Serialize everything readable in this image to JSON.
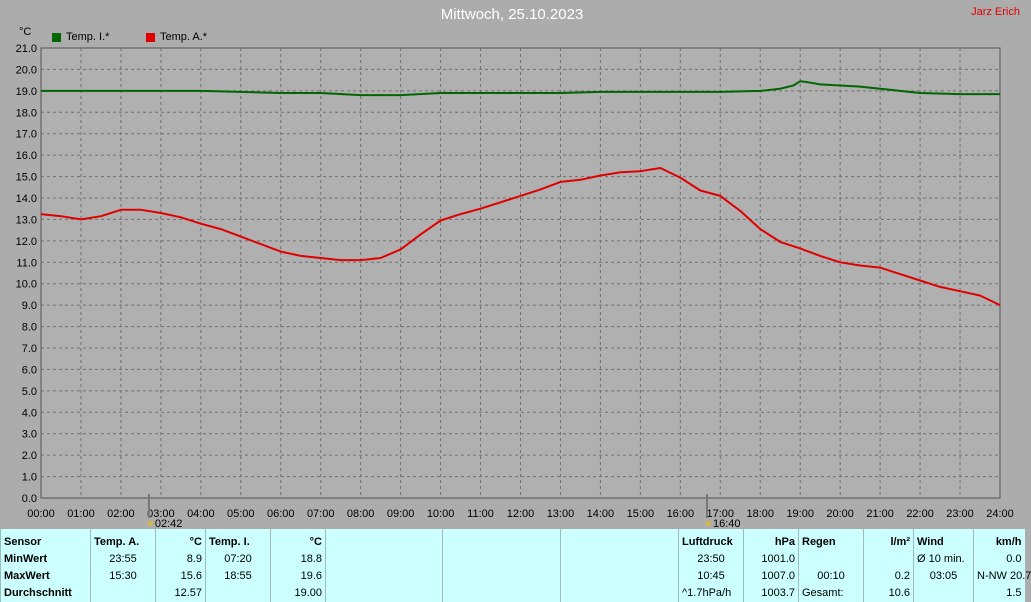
{
  "header": {
    "title": "Mittwoch, 25.10.2023",
    "author": "Jarz Erich",
    "unit": "°C"
  },
  "legend": [
    {
      "label": "Temp. I.*",
      "color": "#006600"
    },
    {
      "label": "Temp. A.*",
      "color": "#e00000"
    }
  ],
  "sun_markers": [
    {
      "time": "02:42",
      "hour": 2.7
    },
    {
      "time": "16:40",
      "hour": 16.667
    }
  ],
  "chart_data": {
    "type": "line",
    "title": "Mittwoch, 25.10.2023",
    "ylabel": "°C",
    "xlabel": "",
    "xlim": [
      "00:00",
      "24:00"
    ],
    "ylim": [
      0,
      21
    ],
    "grid": true,
    "legend_position": "top-left",
    "x_ticks": [
      "00:00",
      "01:00",
      "02:00",
      "03:00",
      "04:00",
      "05:00",
      "06:00",
      "07:00",
      "08:00",
      "09:00",
      "10:00",
      "11:00",
      "12:00",
      "13:00",
      "14:00",
      "15:00",
      "16:00",
      "17:00",
      "18:00",
      "19:00",
      "20:00",
      "21:00",
      "22:00",
      "23:00",
      "24:00"
    ],
    "y_ticks": [
      "0.0",
      "1.0",
      "2.0",
      "3.0",
      "4.0",
      "5.0",
      "6.0",
      "7.0",
      "8.0",
      "9.0",
      "10.0",
      "11.0",
      "12.0",
      "13.0",
      "14.0",
      "15.0",
      "16.0",
      "17.0",
      "18.0",
      "19.0",
      "20.0",
      "21.0"
    ],
    "series": [
      {
        "name": "Temp. I.*",
        "color": "#006600",
        "x": [
          0,
          1,
          2,
          3,
          4,
          5,
          6,
          7,
          8,
          9,
          10,
          11,
          12,
          13,
          14,
          15,
          16,
          17,
          18,
          18.5,
          18.83,
          19,
          19.2,
          19.5,
          20,
          20.5,
          21,
          21.5,
          22,
          23,
          24
        ],
        "y": [
          19.0,
          19.0,
          19.0,
          19.0,
          19.0,
          18.95,
          18.9,
          18.9,
          18.8,
          18.8,
          18.9,
          18.9,
          18.9,
          18.9,
          18.95,
          18.95,
          18.95,
          18.95,
          19.0,
          19.1,
          19.25,
          19.45,
          19.4,
          19.3,
          19.25,
          19.2,
          19.1,
          19.0,
          18.9,
          18.85,
          18.85
        ]
      },
      {
        "name": "Temp. A.*",
        "color": "#e00000",
        "x": [
          0,
          0.5,
          1,
          1.5,
          2,
          2.5,
          3,
          3.5,
          4,
          4.5,
          5,
          5.5,
          6,
          6.5,
          7,
          7.5,
          8,
          8.5,
          9,
          9.5,
          10,
          10.5,
          11,
          11.5,
          12,
          12.5,
          13,
          13.5,
          14,
          14.5,
          15,
          15.5,
          16,
          16.5,
          17,
          17.5,
          18,
          18.5,
          19,
          19.5,
          20,
          20.5,
          21,
          21.5,
          22,
          22.5,
          23,
          23.5,
          24
        ],
        "y": [
          13.25,
          13.15,
          13.0,
          13.15,
          13.45,
          13.45,
          13.3,
          13.1,
          12.8,
          12.55,
          12.2,
          11.85,
          11.5,
          11.3,
          11.2,
          11.1,
          11.1,
          11.2,
          11.6,
          12.3,
          12.95,
          13.25,
          13.5,
          13.8,
          14.1,
          14.4,
          14.75,
          14.85,
          15.05,
          15.2,
          15.25,
          15.4,
          14.95,
          14.35,
          14.1,
          13.4,
          12.55,
          11.95,
          11.65,
          11.3,
          11.0,
          10.85,
          10.75,
          10.45,
          10.15,
          9.85,
          9.65,
          9.45,
          9.0
        ]
      }
    ]
  },
  "stats": {
    "row_labels": [
      "Sensor",
      "MinWert",
      "MaxWert",
      "Durchschnitt"
    ],
    "temp_a": {
      "header": "Temp. A.",
      "unit": "°C",
      "min_time": "23:55",
      "min_val": "8.9",
      "max_time": "15:30",
      "max_val": "15.6",
      "avg": "12.57"
    },
    "temp_i": {
      "header": "Temp. I.",
      "unit": "°C",
      "min_time": "07:20",
      "min_val": "18.8",
      "max_time": "18:55",
      "max_val": "19.6",
      "avg": "19.00"
    },
    "pressure": {
      "header": "Luftdruck",
      "unit": "hPa",
      "min_time": "23:50",
      "min_val": "1001.0",
      "max_time": "10:45",
      "max_val": "1007.0",
      "trend": "^1.7hPa/h",
      "avg": "1003.7"
    },
    "rain": {
      "header": "Regen",
      "unit": "l/m²",
      "time": "00:10",
      "val": "0.2",
      "total_label": "Gesamt:",
      "total": "10.6"
    },
    "wind": {
      "header": "Wind",
      "unit": "km/h",
      "avg_label": "Ø 10 min.",
      "avg_val": "0.0",
      "max_time": "03:05",
      "max_dir": "N-NW 20.7",
      "avg": "1.5"
    }
  }
}
